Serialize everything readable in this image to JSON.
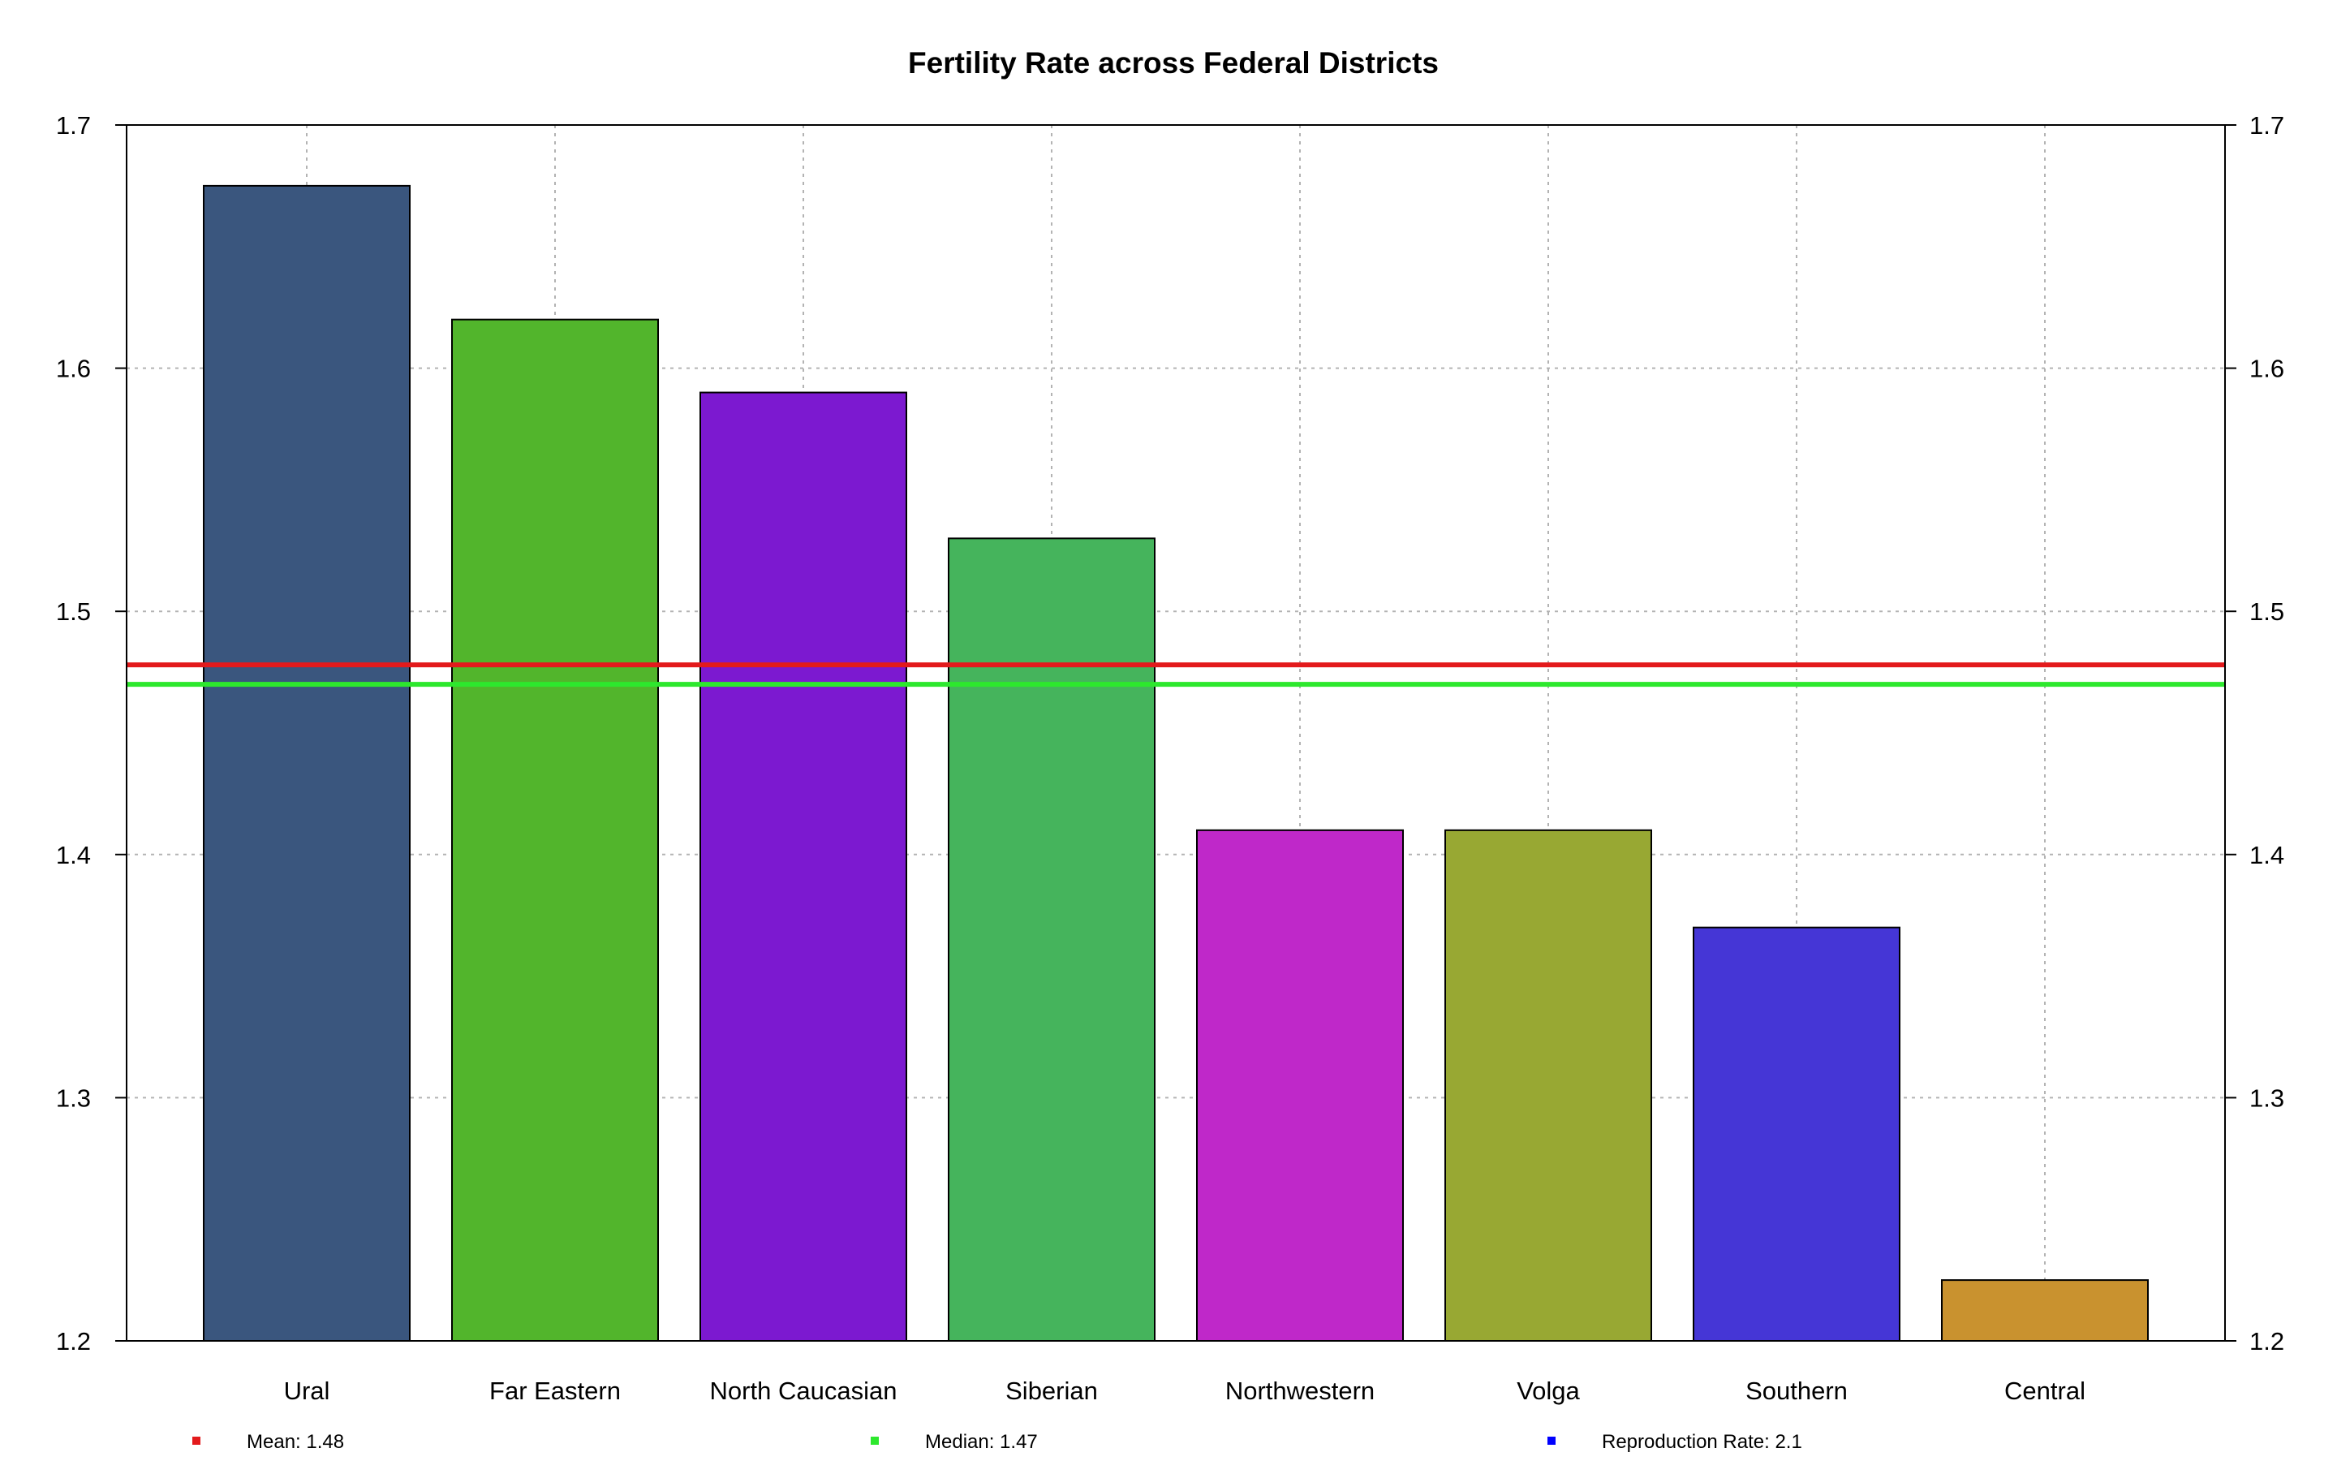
{
  "chart_data": {
    "type": "bar",
    "title": "Fertility Rate across Federal Districts",
    "xlabel": "",
    "ylabel": "",
    "ylim": [
      1.2,
      1.7
    ],
    "yticks": [
      "1.2",
      "1.3",
      "1.4",
      "1.5",
      "1.6",
      "1.7"
    ],
    "categories": [
      "Ural",
      "Far Eastern",
      "North Caucasian",
      "Siberian",
      "Northwestern",
      "Volga",
      "Southern",
      "Central"
    ],
    "values": [
      1.675,
      1.62,
      1.59,
      1.53,
      1.41,
      1.41,
      1.37,
      1.225
    ],
    "bar_colors": [
      "#3a567e",
      "#52b52c",
      "#7c19d0",
      "#45b45c",
      "#bf28c9",
      "#98a833",
      "#4536d6",
      "#c9922f"
    ],
    "grid": true,
    "secondary_y_axis": true,
    "reference_lines": [
      {
        "label": "Mean: 1.48",
        "value": 1.478,
        "color": "#e31a1c",
        "shown": true
      },
      {
        "label": "Median: 1.47",
        "value": 1.47,
        "color": "#2de82d",
        "shown": true
      },
      {
        "label": "Reproduction Rate: 2.1",
        "value": 2.1,
        "color": "#0000ff",
        "shown": false
      }
    ],
    "legend_position": "bottom"
  }
}
